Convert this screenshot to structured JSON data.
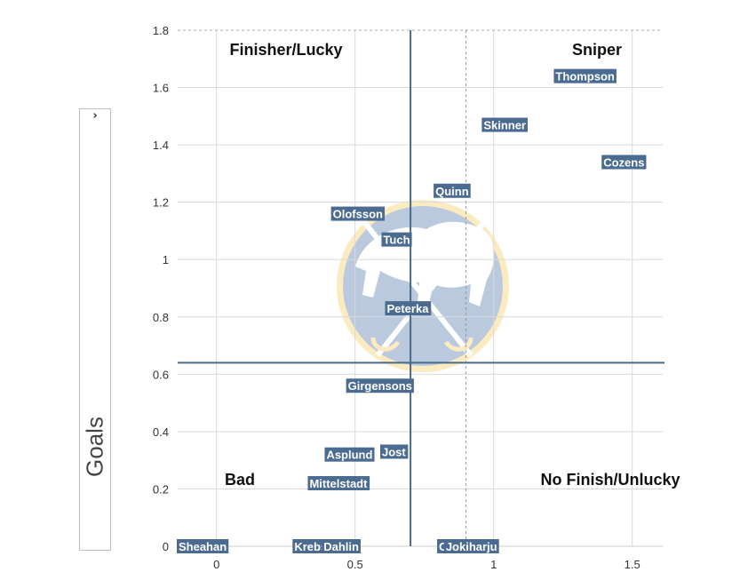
{
  "ylabel": {
    "text": "Goals",
    "toggle_icon": "›"
  },
  "chart_data": {
    "type": "scatter",
    "title": "",
    "xlabel": "",
    "ylabel": "Goals",
    "xlim": [
      -0.14,
      1.61
    ],
    "ylim": [
      0,
      1.8
    ],
    "xticks": [
      0,
      0.5,
      1,
      1.5
    ],
    "xtick_labels": [
      "0",
      "0.5",
      "1",
      "1.5"
    ],
    "yticks": [
      0,
      0.2,
      0.4,
      0.6,
      0.8,
      1,
      1.2,
      1.4,
      1.6,
      1.8
    ],
    "ytick_labels": [
      "0",
      "0.2",
      "0.4",
      "0.6",
      "0.8",
      "1",
      "1.2",
      "1.4",
      "1.6",
      "1.8"
    ],
    "grid": true,
    "reference_lines": {
      "x": 0.7,
      "y": 0.64
    },
    "dotted_line_x": 0.9,
    "quadrant_labels": [
      "Finisher/Lucky",
      "Sniper",
      "Bad",
      "No Finish/Unlucky"
    ],
    "label_color": "#4b6b91",
    "line_color": "#4a6a88",
    "points": [
      {
        "label": "Thompson",
        "x": 1.33,
        "y": 1.64
      },
      {
        "label": "Skinner",
        "x": 1.04,
        "y": 1.47
      },
      {
        "label": "Cozens",
        "x": 1.47,
        "y": 1.34
      },
      {
        "label": "Quinn",
        "x": 0.85,
        "y": 1.24
      },
      {
        "label": "Olofsson",
        "x": 0.51,
        "y": 1.16
      },
      {
        "label": "Tuch",
        "x": 0.65,
        "y": 1.07
      },
      {
        "label": "Peterka",
        "x": 0.69,
        "y": 0.83
      },
      {
        "label": "Girgensons",
        "x": 0.59,
        "y": 0.56
      },
      {
        "label": "Jost",
        "x": 0.64,
        "y": 0.33
      },
      {
        "label": "Asplund",
        "x": 0.48,
        "y": 0.32
      },
      {
        "label": "Mittelstadt",
        "x": 0.44,
        "y": 0.22
      },
      {
        "label": "Sheahan",
        "x": -0.05,
        "y": 0.0
      },
      {
        "label": "Krebs",
        "x": 0.34,
        "y": 0.0
      },
      {
        "label": "Dahlin",
        "x": 0.45,
        "y": 0.0
      },
      {
        "label": "Okposo",
        "x": 0.88,
        "y": 0.0
      },
      {
        "label": "Jokiharju",
        "x": 0.92,
        "y": 0.0
      }
    ]
  }
}
